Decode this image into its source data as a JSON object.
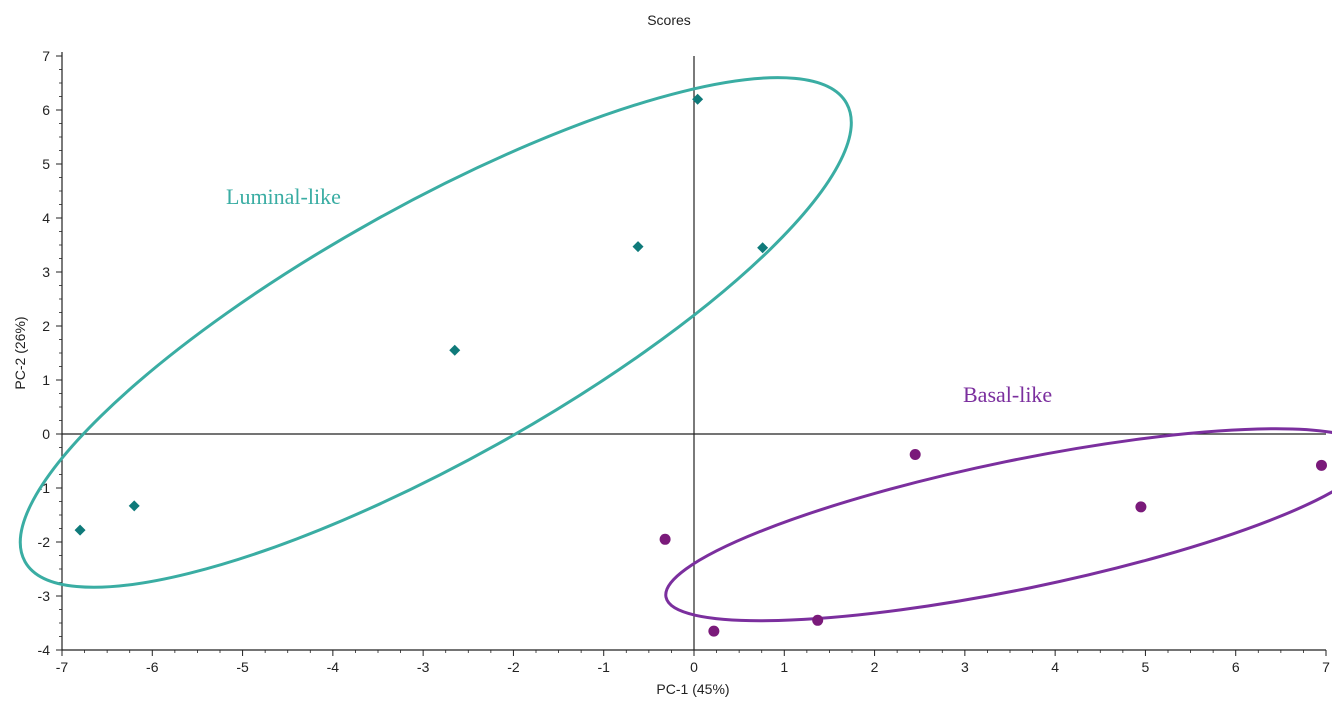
{
  "chart_data": {
    "type": "scatter",
    "title": "Scores",
    "xlabel": "PC-1 (45%)",
    "ylabel": "PC-2 (26%)",
    "xlim": [
      -7,
      7
    ],
    "ylim": [
      -4,
      7
    ],
    "xticks": [
      "-7",
      "-6",
      "-5",
      "-4",
      "-3",
      "-2",
      "-1",
      "0",
      "1",
      "2",
      "3",
      "4",
      "5",
      "6",
      "7"
    ],
    "yticks": [
      "-4",
      "-3",
      "-2",
      "-1",
      "0",
      "1",
      "2",
      "3",
      "4",
      "5",
      "6",
      "7"
    ],
    "grid": false,
    "zero_lines": true,
    "series": [
      {
        "name": "Luminal-like",
        "color": "#0f7a7a",
        "marker": "diamond",
        "points": [
          {
            "x": -6.8,
            "y": -1.78
          },
          {
            "x": -6.2,
            "y": -1.33
          },
          {
            "x": -2.65,
            "y": 1.55
          },
          {
            "x": -0.62,
            "y": 3.47
          },
          {
            "x": 0.04,
            "y": 6.2
          },
          {
            "x": 0.76,
            "y": 3.45
          }
        ]
      },
      {
        "name": "Basal-like",
        "color": "#7a1a7a",
        "marker": "circle",
        "points": [
          {
            "x": -0.32,
            "y": -1.95
          },
          {
            "x": 0.22,
            "y": -3.65
          },
          {
            "x": 1.37,
            "y": -3.45
          },
          {
            "x": 2.45,
            "y": -0.38
          },
          {
            "x": 4.95,
            "y": -1.35
          },
          {
            "x": 6.95,
            "y": -0.58
          }
        ]
      }
    ],
    "ellipses": [
      {
        "label": "Luminal-like",
        "color": "#3aada3",
        "center_x": -2.86,
        "center_y": 1.88,
        "semi_major_x_extent": 4.55,
        "semi_minor": 1.63,
        "rotation_deg_data": 43
      },
      {
        "label": "Basal-like",
        "color": "#7b2f9e",
        "center_x": 3.59,
        "center_y": -1.68,
        "semi_major_x_extent": 3.9,
        "semi_minor": 0.82,
        "rotation_deg_data": 19
      }
    ]
  },
  "colors": {
    "luminal_ellipse": "#3aada3",
    "basal_ellipse": "#7b2f9e",
    "axis": "#222222"
  }
}
